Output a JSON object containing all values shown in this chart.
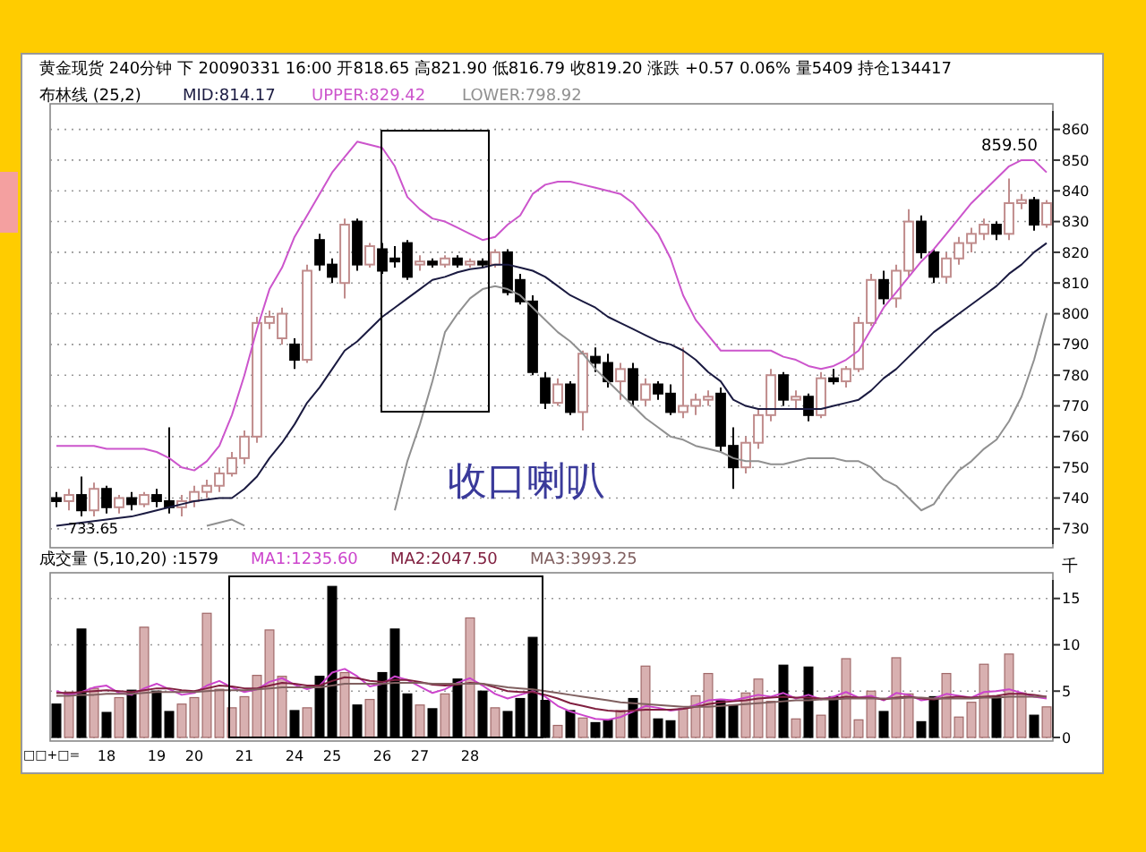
{
  "chart_data": [
    {
      "type": "candlestick",
      "title": "黄金现货 240分钟 下 20090331 16:00 开818.65 高821.90 低816.79 收819.20 涨跌 +0.57 0.06% 量5409 持仓134417",
      "subtitle": "布林线 (25,2)",
      "categories": [
        null,
        null,
        null,
        null,
        null,
        null,
        null,
        null,
        null,
        null,
        null,
        null,
        null,
        null,
        null,
        null,
        null,
        null,
        null,
        null,
        null,
        null,
        null,
        null,
        null,
        null,
        null,
        null,
        null,
        null,
        null,
        null,
        null,
        null,
        null,
        null,
        null,
        null,
        null,
        null,
        null,
        null,
        null,
        null,
        null,
        null,
        null,
        null,
        null,
        null,
        null,
        null,
        null,
        null,
        null,
        null,
        null,
        null,
        null,
        null,
        null,
        null,
        null,
        null,
        null,
        null,
        null,
        null,
        null,
        null,
        null,
        null,
        null,
        null,
        null,
        null,
        null,
        null,
        null,
        null
      ],
      "ohlc": [
        [
          740,
          742,
          737,
          739
        ],
        [
          739,
          743,
          736,
          741
        ],
        [
          741,
          747,
          734,
          736
        ],
        [
          736,
          745,
          734,
          743
        ],
        [
          743,
          744,
          735,
          737
        ],
        [
          737,
          741,
          735,
          740
        ],
        [
          740,
          742,
          736,
          738
        ],
        [
          738,
          742,
          737,
          741
        ],
        [
          741,
          743,
          737,
          739
        ],
        [
          739,
          763,
          735,
          737
        ],
        [
          737,
          741,
          734,
          739
        ],
        [
          739,
          744,
          737,
          742
        ],
        [
          742,
          746,
          740,
          744
        ],
        [
          744,
          750,
          742,
          748
        ],
        [
          748,
          755,
          747,
          753
        ],
        [
          753,
          762,
          751,
          760
        ],
        [
          760,
          799,
          758,
          797
        ],
        [
          797,
          801,
          795,
          799
        ],
        [
          792,
          802,
          790,
          800
        ],
        [
          790,
          792,
          782,
          785
        ],
        [
          785,
          816,
          784,
          814
        ],
        [
          824,
          826,
          814,
          816
        ],
        [
          816,
          818,
          810,
          812
        ],
        [
          810,
          831,
          805,
          829
        ],
        [
          830,
          831,
          814,
          816
        ],
        [
          816,
          823,
          815,
          822
        ],
        [
          821,
          823,
          813,
          814
        ],
        [
          818,
          822,
          815,
          817
        ],
        [
          823,
          824,
          811,
          812
        ],
        [
          816,
          819,
          814,
          817
        ],
        [
          817,
          818,
          815,
          816
        ],
        [
          816,
          819,
          815,
          818
        ],
        [
          818,
          819,
          815,
          816
        ],
        [
          816,
          818,
          815,
          817
        ],
        [
          817,
          818,
          815,
          816
        ],
        [
          816,
          821,
          815,
          820
        ],
        [
          820,
          821,
          806,
          807
        ],
        [
          811,
          813,
          803,
          804
        ],
        [
          804,
          806,
          780,
          781
        ],
        [
          779,
          781,
          769,
          771
        ],
        [
          771,
          779,
          770,
          777
        ],
        [
          777,
          778,
          767,
          768
        ],
        [
          768,
          788,
          762,
          787
        ],
        [
          786,
          789,
          781,
          784
        ],
        [
          784,
          787,
          776,
          778
        ],
        [
          778,
          784,
          772,
          782
        ],
        [
          782,
          784,
          770,
          772
        ],
        [
          772,
          779,
          770,
          777
        ],
        [
          777,
          778,
          772,
          774
        ],
        [
          774,
          777,
          767,
          768
        ],
        [
          768,
          789,
          766,
          770
        ],
        [
          770,
          774,
          767,
          772
        ],
        [
          772,
          775,
          770,
          773
        ],
        [
          774,
          776,
          755,
          757
        ],
        [
          757,
          763,
          743,
          750
        ],
        [
          750,
          760,
          748,
          758
        ],
        [
          758,
          769,
          756,
          767
        ],
        [
          767,
          782,
          765,
          780
        ],
        [
          780,
          781,
          770,
          772
        ],
        [
          772,
          775,
          769,
          773
        ],
        [
          773,
          774,
          765,
          767
        ],
        [
          767,
          781,
          766,
          779
        ],
        [
          779,
          782,
          777,
          778
        ],
        [
          778,
          783,
          776,
          782
        ],
        [
          782,
          799,
          781,
          797
        ],
        [
          797,
          813,
          796,
          811
        ],
        [
          811,
          814,
          803,
          805
        ],
        [
          805,
          816,
          802,
          814
        ],
        [
          814,
          834,
          812,
          830
        ],
        [
          830,
          832,
          818,
          820
        ],
        [
          820,
          821,
          810,
          812
        ],
        [
          812,
          820,
          810,
          818
        ],
        [
          818,
          825,
          816,
          823
        ],
        [
          823,
          828,
          820,
          826
        ],
        [
          826,
          831,
          824,
          829
        ],
        [
          829,
          830,
          824,
          826
        ],
        [
          826,
          844,
          824,
          836
        ],
        [
          836,
          839,
          834,
          837
        ],
        [
          837,
          838,
          827,
          829
        ],
        [
          829,
          837,
          828,
          836
        ]
      ],
      "colors": [
        "#000000",
        "#c08c8c",
        "#000000",
        "#c08c8c",
        "#000000",
        "#c08c8c",
        "#000000",
        "#c08c8c",
        "#000000",
        "#000000",
        "#c08c8c",
        "#c08c8c",
        "#c08c8c",
        "#c08c8c",
        "#c08c8c",
        "#c08c8c",
        "#c08c8c",
        "#c08c8c",
        "#c08c8c",
        "#000000",
        "#c08c8c",
        "#000000",
        "#000000",
        "#c08c8c",
        "#000000",
        "#c08c8c",
        "#000000",
        "#000000",
        "#000000",
        "#c08c8c",
        "#000000",
        "#c08c8c",
        "#000000",
        "#c08c8c",
        "#000000",
        "#c08c8c",
        "#000000",
        "#000000",
        "#000000",
        "#000000",
        "#c08c8c",
        "#000000",
        "#c08c8c",
        "#000000",
        "#000000",
        "#c08c8c",
        "#000000",
        "#c08c8c",
        "#000000",
        "#000000",
        "#c08c8c",
        "#c08c8c",
        "#c08c8c",
        "#000000",
        "#000000",
        "#c08c8c",
        "#c08c8c",
        "#c08c8c",
        "#000000",
        "#c08c8c",
        "#000000",
        "#c08c8c",
        "#000000",
        "#c08c8c",
        "#c08c8c",
        "#c08c8c",
        "#000000",
        "#c08c8c",
        "#c08c8c",
        "#000000",
        "#000000",
        "#c08c8c",
        "#c08c8c",
        "#c08c8c",
        "#c08c8c",
        "#000000",
        "#c08c8c",
        "#c08c8c",
        "#000000",
        "#c08c8c"
      ],
      "series": [
        {
          "type": "line",
          "name": "MID:814.17",
          "color": "#1a1a40",
          "values": [
            731,
            731.5,
            732,
            732.5,
            733,
            733.5,
            734,
            735,
            736,
            737,
            738,
            739,
            739.5,
            740,
            740,
            743,
            747,
            753,
            758,
            764,
            771,
            776,
            782,
            788,
            791,
            795,
            799,
            802,
            805,
            808,
            811,
            812,
            813.5,
            814.5,
            815,
            816,
            816,
            815,
            814,
            812,
            809,
            806,
            804,
            802,
            799,
            797,
            795,
            793,
            791,
            790,
            788,
            785,
            781,
            778,
            772,
            770,
            769,
            769,
            769,
            769,
            769,
            769,
            770,
            771,
            772,
            775,
            779,
            782,
            786,
            790,
            794,
            797,
            800,
            803,
            806,
            809,
            813,
            816,
            820,
            823
          ]
        },
        {
          "type": "line",
          "name": "UPPER:829.42",
          "color": "#cc55cc",
          "values": [
            757,
            757,
            757,
            757,
            756,
            756,
            756,
            756,
            755,
            753,
            750,
            749,
            752,
            757,
            767,
            780,
            795,
            808,
            815,
            825,
            832,
            839,
            846,
            851,
            856,
            855,
            854,
            848,
            838,
            834,
            831,
            830,
            828,
            826,
            824,
            825,
            829,
            832,
            839,
            842,
            843,
            843,
            842,
            841,
            840,
            839,
            836,
            831,
            826,
            818,
            806,
            798,
            793,
            788,
            788,
            788,
            788,
            788,
            786,
            785,
            783,
            782,
            783,
            785,
            788,
            795,
            802,
            807,
            812,
            817,
            821,
            826,
            831,
            836,
            840,
            844,
            848,
            850,
            850,
            846
          ]
        },
        {
          "type": "line",
          "name": "LOWER:798.92",
          "color": "#909090",
          "values": [
            null,
            null,
            null,
            null,
            null,
            null,
            null,
            null,
            null,
            null,
            null,
            null,
            731,
            732,
            733,
            731,
            null,
            null,
            null,
            null,
            null,
            null,
            null,
            null,
            null,
            null,
            null,
            736,
            752,
            764,
            778,
            794,
            800,
            805,
            808,
            809,
            808,
            806,
            802,
            798,
            794,
            791,
            787,
            782,
            778,
            774,
            770,
            766,
            763,
            760,
            759,
            757,
            756,
            755,
            753,
            752,
            752,
            751,
            751,
            752,
            753,
            753,
            753,
            752,
            752,
            750,
            746,
            744,
            740,
            736,
            738,
            744,
            749,
            752,
            756,
            759,
            765,
            773,
            785,
            800
          ]
        }
      ],
      "ylim": [
        725,
        866
      ],
      "yticks": [
        730,
        740,
        750,
        760,
        770,
        780,
        790,
        800,
        810,
        820,
        830,
        840,
        850,
        860
      ],
      "grid": "y",
      "legend": "top",
      "tick_labels": "y",
      "annotations": [
        "收口喇叭",
        "859.50",
        "733.65"
      ]
    },
    {
      "type": "bar",
      "title": "成交量 (5,10,20) :1579",
      "ylabel": "千",
      "categories": [
        null,
        null,
        null,
        null,
        "18",
        null,
        null,
        null,
        "19",
        null,
        null,
        "20",
        null,
        null,
        null,
        "21",
        null,
        null,
        null,
        "24",
        null,
        null,
        "25",
        null,
        null,
        null,
        "26",
        null,
        null,
        "27",
        null,
        null,
        null,
        "28",
        null,
        null,
        null,
        null,
        null,
        null,
        null,
        null,
        null,
        null,
        null,
        null,
        null,
        null,
        null,
        null,
        null,
        null,
        null,
        null,
        null,
        null,
        null,
        null,
        null,
        null,
        null,
        null,
        null,
        null,
        null,
        null,
        null,
        null,
        null,
        null,
        null,
        null,
        null,
        null,
        null,
        null,
        null,
        null,
        null,
        null
      ],
      "values": [
        3.6,
        4.9,
        11.7,
        5.3,
        2.7,
        4.3,
        5.1,
        11.9,
        5.0,
        2.8,
        3.6,
        4.3,
        13.4,
        5.2,
        3.2,
        4.4,
        6.7,
        11.6,
        6.6,
        2.9,
        3.2,
        6.6,
        16.3,
        7.0,
        3.5,
        4.1,
        7.0,
        11.7,
        4.7,
        3.5,
        3.1,
        4.7,
        6.3,
        12.9,
        5.0,
        3.2,
        2.8,
        4.2,
        10.8,
        4.0,
        1.3,
        2.9,
        2.1,
        1.6,
        1.9,
        2.9,
        4.2,
        7.7,
        2.0,
        1.8,
        3.1,
        4.5,
        6.9,
        4.1,
        3.5,
        4.8,
        6.3,
        3.9,
        7.8,
        2.0,
        7.6,
        2.4,
        4.4,
        8.5,
        1.9,
        5.0,
        2.8,
        8.6,
        4.7,
        1.7,
        4.4,
        6.9,
        2.2,
        3.8,
        7.9,
        4.4,
        9.0,
        4.8,
        2.4,
        3.3
      ],
      "colors": [
        "#000000",
        "#d8b0b0",
        "#000000",
        "#d8b0b0",
        "#000000",
        "#d8b0b0",
        "#000000",
        "#d8b0b0",
        "#000000",
        "#000000",
        "#d8b0b0",
        "#d8b0b0",
        "#d8b0b0",
        "#d8b0b0",
        "#d8b0b0",
        "#d8b0b0",
        "#d8b0b0",
        "#d8b0b0",
        "#d8b0b0",
        "#000000",
        "#d8b0b0",
        "#000000",
        "#000000",
        "#d8b0b0",
        "#000000",
        "#d8b0b0",
        "#000000",
        "#000000",
        "#000000",
        "#d8b0b0",
        "#000000",
        "#d8b0b0",
        "#000000",
        "#d8b0b0",
        "#000000",
        "#d8b0b0",
        "#000000",
        "#000000",
        "#000000",
        "#000000",
        "#d8b0b0",
        "#000000",
        "#d8b0b0",
        "#000000",
        "#000000",
        "#d8b0b0",
        "#000000",
        "#d8b0b0",
        "#000000",
        "#000000",
        "#d8b0b0",
        "#d8b0b0",
        "#d8b0b0",
        "#000000",
        "#000000",
        "#d8b0b0",
        "#d8b0b0",
        "#d8b0b0",
        "#000000",
        "#d8b0b0",
        "#000000",
        "#d8b0b0",
        "#000000",
        "#d8b0b0",
        "#d8b0b0",
        "#d8b0b0",
        "#000000",
        "#d8b0b0",
        "#d8b0b0",
        "#000000",
        "#000000",
        "#d8b0b0",
        "#d8b0b0",
        "#d8b0b0",
        "#d8b0b0",
        "#000000",
        "#d8b0b0",
        "#d8b0b0",
        "#000000",
        "#d8b0b0"
      ],
      "series": [
        {
          "type": "line",
          "name": "MA1:1235.60",
          "color": "#cc44cc",
          "values": [
            5.0,
            4.6,
            4.9,
            5.4,
            5.6,
            4.8,
            4.6,
            5.3,
            5.8,
            5.2,
            4.6,
            4.8,
            5.6,
            6.1,
            5.4,
            4.9,
            5.2,
            6.0,
            6.4,
            5.7,
            5.2,
            5.6,
            7.0,
            7.4,
            6.6,
            5.5,
            5.8,
            6.6,
            6.2,
            5.5,
            4.8,
            5.2,
            5.9,
            6.4,
            5.6,
            4.7,
            4.2,
            4.6,
            5.0,
            4.4,
            3.4,
            2.8,
            2.4,
            2.0,
            1.9,
            2.2,
            2.8,
            3.4,
            3.2,
            2.9,
            3.1,
            3.5,
            4.0,
            4.1,
            4.0,
            4.3,
            4.6,
            4.4,
            4.8,
            4.2,
            4.6,
            4.1,
            4.4,
            4.9,
            4.3,
            4.5,
            4.0,
            4.8,
            4.6,
            4.0,
            4.2,
            4.7,
            4.5,
            4.3,
            4.9,
            5.0,
            5.2,
            4.8,
            4.4,
            4.2
          ]
        },
        {
          "type": "line",
          "name": "MA2:2047.50",
          "color": "#802040",
          "values": [
            4.8,
            4.8,
            4.9,
            5.0,
            5.1,
            5.0,
            4.9,
            5.1,
            5.3,
            5.3,
            5.1,
            5.0,
            5.3,
            5.6,
            5.5,
            5.3,
            5.3,
            5.6,
            5.9,
            5.8,
            5.6,
            5.6,
            6.1,
            6.5,
            6.4,
            6.1,
            6.0,
            6.2,
            6.2,
            6.0,
            5.7,
            5.6,
            5.7,
            5.9,
            5.8,
            5.4,
            5.0,
            4.9,
            4.9,
            4.6,
            4.2,
            3.7,
            3.4,
            3.1,
            2.9,
            2.8,
            2.9,
            3.0,
            3.0,
            3.0,
            3.1,
            3.3,
            3.6,
            3.8,
            3.9,
            4.0,
            4.2,
            4.3,
            4.4,
            4.3,
            4.3,
            4.2,
            4.2,
            4.4,
            4.3,
            4.3,
            4.1,
            4.3,
            4.4,
            4.2,
            4.1,
            4.3,
            4.4,
            4.3,
            4.4,
            4.5,
            4.7,
            4.7,
            4.6,
            4.4
          ]
        },
        {
          "type": "line",
          "name": "MA3:3993.25",
          "color": "#806060",
          "values": [
            4.5,
            4.5,
            4.6,
            4.6,
            4.7,
            4.7,
            4.7,
            4.8,
            4.9,
            4.9,
            4.9,
            4.9,
            5.0,
            5.1,
            5.1,
            5.1,
            5.2,
            5.3,
            5.4,
            5.4,
            5.4,
            5.4,
            5.6,
            5.8,
            5.8,
            5.8,
            5.8,
            5.9,
            5.9,
            5.9,
            5.8,
            5.8,
            5.8,
            5.8,
            5.8,
            5.6,
            5.4,
            5.3,
            5.2,
            5.0,
            4.8,
            4.6,
            4.4,
            4.2,
            4.0,
            3.8,
            3.7,
            3.6,
            3.5,
            3.4,
            3.3,
            3.3,
            3.3,
            3.4,
            3.5,
            3.6,
            3.7,
            3.8,
            3.9,
            4.0,
            4.0,
            4.1,
            4.1,
            4.2,
            4.2,
            4.2,
            4.2,
            4.2,
            4.3,
            4.3,
            4.2,
            4.2,
            4.2,
            4.2,
            4.3,
            4.3,
            4.4,
            4.4,
            4.4,
            4.4
          ]
        }
      ],
      "ylim": [
        0,
        17
      ],
      "yticks": [
        0,
        5,
        10,
        15
      ],
      "grid": "y",
      "legend": "top",
      "annotations": [
        "□□+□="
      ]
    }
  ]
}
